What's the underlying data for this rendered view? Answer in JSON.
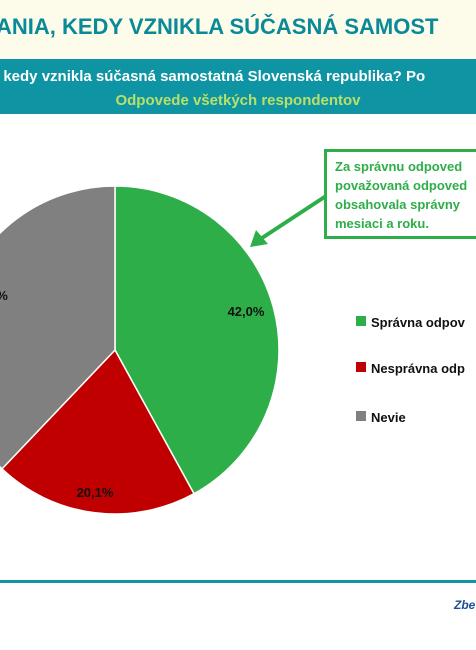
{
  "header": {
    "title": "ANIA, KEDY VZNIKLA SÚČASNÁ SAMOST",
    "question": ", kedy vznikla súčasná samostatná Slovenská republika? Po",
    "subtitle": "Odpovede všetkých respondentov"
  },
  "callout": {
    "lines": [
      "Za správnu odpoved",
      "považovaná odpoved",
      "obsahovala správny",
      "mesiaci a roku."
    ]
  },
  "footer": {
    "text": "Zbe"
  },
  "colors": {
    "accent": "#0f94a4",
    "correct": "#2eae49",
    "incorrect": "#c00000",
    "unknown": "#808080"
  },
  "chart_data": {
    "type": "pie",
    "slices": [
      {
        "label": "Správna odpov",
        "value": 42.0,
        "display": "42,0%",
        "color": "#2eae49"
      },
      {
        "label": "Nesprávna odp",
        "value": 20.1,
        "display": "20,1%",
        "color": "#c00000"
      },
      {
        "label": "Nevie",
        "value": 37.9,
        "display": "%",
        "color": "#808080"
      }
    ],
    "legend_position": "right"
  }
}
